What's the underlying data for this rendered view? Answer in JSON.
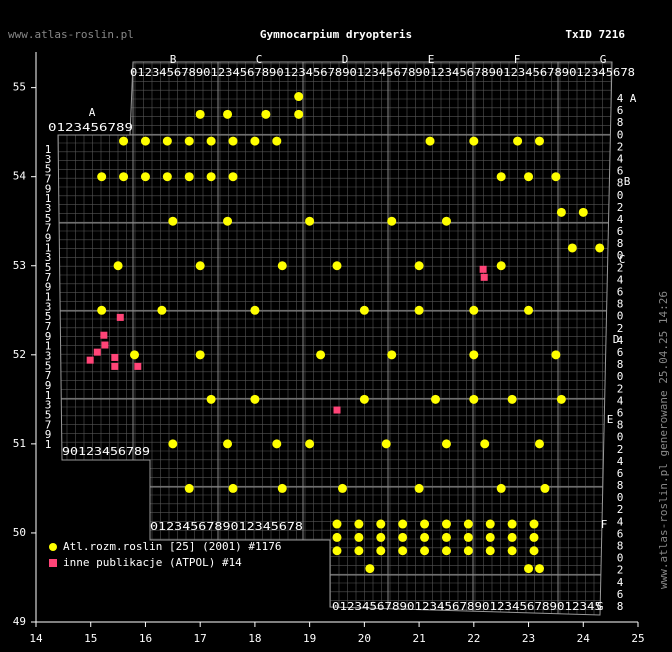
{
  "header": {
    "site": "www.atlas-roslin.pl",
    "title": "Gymnocarpium dryopteris",
    "taxon_id": "TxID 7216"
  },
  "chart_data": {
    "type": "scatter",
    "xlim": [
      14,
      25
    ],
    "ylim": [
      49,
      55.4
    ],
    "xticks": [
      14,
      15,
      16,
      17,
      18,
      19,
      20,
      21,
      22,
      23,
      24,
      25
    ],
    "yticks": [
      49,
      50,
      51,
      52,
      53,
      54,
      55
    ],
    "legend": "bottom-left",
    "series": [
      {
        "name": "Atl.rozm.roslin [25] (2001) #1176",
        "color": "#ffff00",
        "marker": "circle",
        "x": [
          19.5,
          19.9,
          20.3,
          20.7,
          21.1,
          21.5,
          21.9,
          22.3,
          22.7,
          23.1,
          19.5,
          19.9,
          20.3,
          20.7,
          21.1,
          21.5,
          21.9,
          22.3,
          22.7,
          23.1,
          19.5,
          19.9,
          20.3,
          20.7,
          21.1,
          21.5,
          21.9,
          22.3,
          22.7,
          23.1,
          20.1,
          23.0,
          23.2,
          15.6,
          16.0,
          16.4,
          16.8,
          17.2,
          17.6,
          18.0,
          18.4,
          15.2,
          15.6,
          16.0,
          16.4,
          16.8,
          17.2,
          17.6,
          17.0,
          17.5,
          18.2,
          18.8,
          18.8,
          21.2,
          22.0,
          22.8,
          23.2,
          22.5,
          23.0,
          23.5,
          23.6,
          24.0,
          23.8,
          24.3,
          16.5,
          17.5,
          19.0,
          20.5,
          21.5,
          15.5,
          17.0,
          18.5,
          19.5,
          21.0,
          22.5,
          15.2,
          16.3,
          18.0,
          20.0,
          21.0,
          22.0,
          23.0,
          15.8,
          17.0,
          19.2,
          20.5,
          22.0,
          23.5,
          17.2,
          18.0,
          20.0,
          21.3,
          22.0,
          22.7,
          23.6,
          16.5,
          17.5,
          18.4,
          19.0,
          20.4,
          21.5,
          22.2,
          23.2,
          16.8,
          17.6,
          18.5,
          19.6,
          21.0,
          22.5,
          23.3
        ],
        "values": [
          50.1,
          50.1,
          50.1,
          50.1,
          50.1,
          50.1,
          50.1,
          50.1,
          50.1,
          50.1,
          49.95,
          49.95,
          49.95,
          49.95,
          49.95,
          49.95,
          49.95,
          49.95,
          49.95,
          49.95,
          49.8,
          49.8,
          49.8,
          49.8,
          49.8,
          49.8,
          49.8,
          49.8,
          49.8,
          49.8,
          49.6,
          49.6,
          49.6,
          54.4,
          54.4,
          54.4,
          54.4,
          54.4,
          54.4,
          54.4,
          54.4,
          54.0,
          54.0,
          54.0,
          54.0,
          54.0,
          54.0,
          54.0,
          54.7,
          54.7,
          54.7,
          54.7,
          54.9,
          54.4,
          54.4,
          54.4,
          54.4,
          54.0,
          54.0,
          54.0,
          53.6,
          53.6,
          53.2,
          53.2,
          53.5,
          53.5,
          53.5,
          53.5,
          53.5,
          53.0,
          53.0,
          53.0,
          53.0,
          53.0,
          53.0,
          52.5,
          52.5,
          52.5,
          52.5,
          52.5,
          52.5,
          52.5,
          52.0,
          52.0,
          52.0,
          52.0,
          52.0,
          52.0,
          51.5,
          51.5,
          51.5,
          51.5,
          51.5,
          51.5,
          51.5,
          51.0,
          51.0,
          51.0,
          51.0,
          51.0,
          51.0,
          51.0,
          51.0,
          50.5,
          50.5,
          50.5,
          50.5,
          50.5,
          50.5,
          50.5
        ]
      },
      {
        "name": "inne publikacje (ATPOL) #14",
        "color": "#ff4477",
        "marker": "square",
        "x": [
          15.24,
          15.26,
          15.12,
          14.99,
          15.44,
          15.44,
          15.86,
          15.54,
          22.17,
          22.19,
          19.5
        ],
        "values": [
          52.22,
          52.11,
          52.03,
          51.94,
          51.97,
          51.87,
          51.87,
          52.42,
          52.96,
          52.87,
          51.38
        ]
      }
    ]
  },
  "grid_labels": {
    "top_letters": [
      "B",
      "C",
      "D",
      "E",
      "F",
      "G"
    ],
    "left_letter": "A",
    "right_letters": [
      "A",
      "B",
      "C",
      "D",
      "E",
      "F",
      "G"
    ],
    "ruler_top": "012345678901234567890123456789012345678901234567890123456789012345678",
    "ruler_a": "0123456789",
    "ruler_left_bottom": "90123456789",
    "ruler_mid_bottom": "0123456789012345678",
    "ruler_bottom": "012345678901234567890123456789012345",
    "ruler_left": "1357913579135791357913579135791",
    "ruler_right": "4680246802468024680246802468024680246802468"
  },
  "footer": "www.atlas-roslin.pl generowane 25.04.25 14:26"
}
